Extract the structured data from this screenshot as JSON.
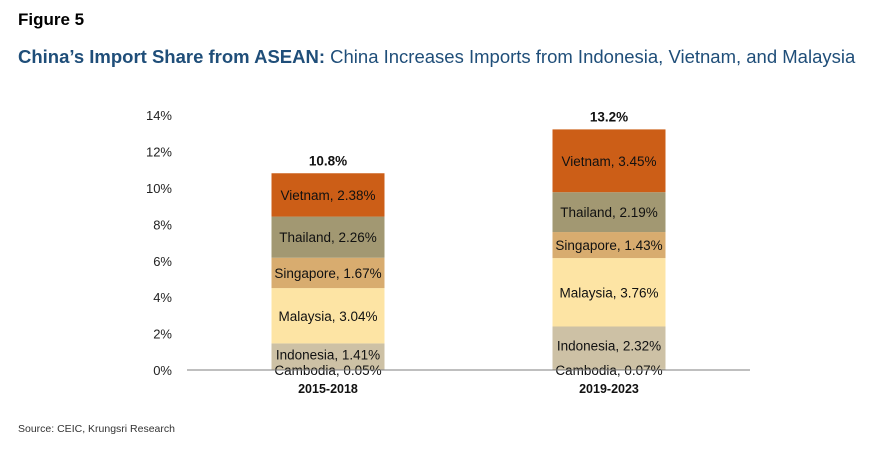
{
  "figure_label": "Figure 5",
  "title_bold": "China’s Import Share from ASEAN:",
  "title_rest": " China Increases Imports from Indonesia, Vietnam, and Malaysia",
  "source": "Source: CEIC, Krungsri Research",
  "chart_data": {
    "type": "bar",
    "stacked": true,
    "categories": [
      "2015-2018",
      "2019-2023"
    ],
    "totals": [
      "10.8%",
      "13.2%"
    ],
    "ylim": [
      0,
      14
    ],
    "yticks": [
      0,
      2,
      4,
      6,
      8,
      10,
      12,
      14
    ],
    "ytick_labels": [
      "0%",
      "2%",
      "4%",
      "6%",
      "8%",
      "10%",
      "12%",
      "14%"
    ],
    "series": [
      {
        "name": "Cambodia",
        "values": [
          0.05,
          0.07
        ],
        "labels": [
          "Cambodia, 0.05%",
          "Cambodia, 0.07%"
        ],
        "color": "#c3b79b"
      },
      {
        "name": "Indonesia",
        "values": [
          1.41,
          2.32
        ],
        "labels": [
          "Indonesia, 1.41%",
          "Indonesia, 2.32%"
        ],
        "color": "#cdc1a5"
      },
      {
        "name": "Malaysia",
        "values": [
          3.04,
          3.76
        ],
        "labels": [
          "Malaysia, 3.04%",
          "Malaysia, 3.76%"
        ],
        "color": "#fde4a4"
      },
      {
        "name": "Singapore",
        "values": [
          1.67,
          1.43
        ],
        "labels": [
          "Singapore, 1.67%",
          "Singapore, 1.43%"
        ],
        "color": "#d8ac6f"
      },
      {
        "name": "Thailand",
        "values": [
          2.26,
          2.19
        ],
        "labels": [
          "Thailand, 2.26%",
          "Thailand, 2.19%"
        ],
        "color": "#a29872"
      },
      {
        "name": "Vietnam",
        "values": [
          2.38,
          3.45
        ],
        "labels": [
          "Vietnam, 2.38%",
          "Vietnam, 3.45%"
        ],
        "color": "#cc5e17"
      }
    ]
  }
}
